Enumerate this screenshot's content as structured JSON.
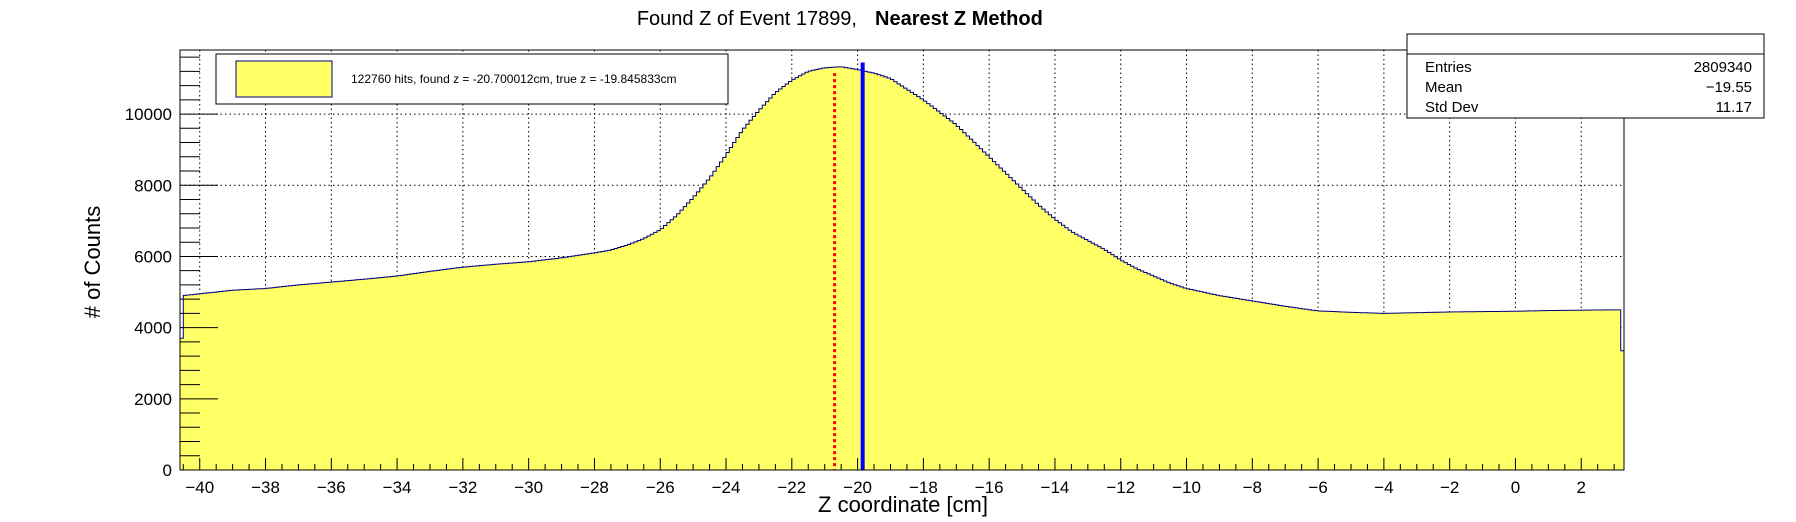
{
  "title": {
    "prefix": "Found Z of Event 17899,",
    "method": "Nearest Z Method"
  },
  "stats": {
    "rows": [
      {
        "label": "Entries",
        "value": "2809340"
      },
      {
        "label": "Mean",
        "value": "−19.55"
      },
      {
        "label": "Std Dev",
        "value": "11.17"
      }
    ]
  },
  "legend": {
    "entry": "122760 hits, found z = -20.700012cm, true z = -19.845833cm"
  },
  "colors": {
    "fill": "#ffff66",
    "outline": "#000080",
    "found_line": "#ff0000",
    "true_line": "#0000ff",
    "grid": "#000000"
  },
  "chart_data": {
    "type": "area",
    "title": "Found Z of Event 17899, Nearest Z Method",
    "xlabel": "Z coordinate [cm]",
    "ylabel": "# of Counts",
    "xlim": [
      -40.6,
      3.3
    ],
    "ylim": [
      0,
      11800
    ],
    "grid": true,
    "x_ticks": [
      -40,
      -38,
      -36,
      -34,
      -32,
      -30,
      -28,
      -26,
      -24,
      -22,
      -20,
      -18,
      -16,
      -14,
      -12,
      -10,
      -8,
      -6,
      -4,
      -2,
      0,
      2
    ],
    "y_ticks": [
      0,
      2000,
      4000,
      6000,
      8000,
      10000
    ],
    "series": [
      {
        "x": [
          -40.6,
          -40.5,
          -40,
          -39,
          -38,
          -37,
          -36,
          -35,
          -34,
          -33,
          -32,
          -31,
          -30,
          -29,
          -28,
          -27.5,
          -27,
          -26.5,
          -26,
          -25.5,
          -25,
          -24.5,
          -24,
          -23.5,
          -23,
          -22.5,
          -22,
          -21.5,
          -21,
          -20.5,
          -20,
          -19.5,
          -19,
          -18.5,
          -18,
          -17.5,
          -17,
          -16.5,
          -16,
          -15.5,
          -15,
          -14.5,
          -14,
          -13.5,
          -13,
          -12.5,
          -12,
          -11.5,
          -11,
          -10.5,
          -10,
          -9,
          -8,
          -7,
          -6,
          -5,
          -4,
          -3,
          -2,
          -1,
          0,
          1,
          2,
          3,
          3.2,
          3.3
        ],
        "values": [
          2500,
          4900,
          4950,
          5050,
          5100,
          5200,
          5280,
          5360,
          5450,
          5580,
          5700,
          5780,
          5850,
          5960,
          6100,
          6180,
          6320,
          6500,
          6750,
          7150,
          7650,
          8200,
          8850,
          9550,
          10100,
          10600,
          10950,
          11200,
          11300,
          11330,
          11250,
          11150,
          11000,
          10700,
          10400,
          10050,
          9700,
          9250,
          8800,
          8350,
          7900,
          7450,
          7050,
          6700,
          6450,
          6200,
          5900,
          5650,
          5450,
          5250,
          5100,
          4900,
          4750,
          4600,
          4470,
          4430,
          4400,
          4420,
          4440,
          4450,
          4460,
          4480,
          4490,
          4500,
          4500,
          2200
        ]
      }
    ],
    "markers": [
      {
        "name": "found z",
        "x": -20.700012
      },
      {
        "name": "true z",
        "x": -19.845833
      }
    ]
  }
}
